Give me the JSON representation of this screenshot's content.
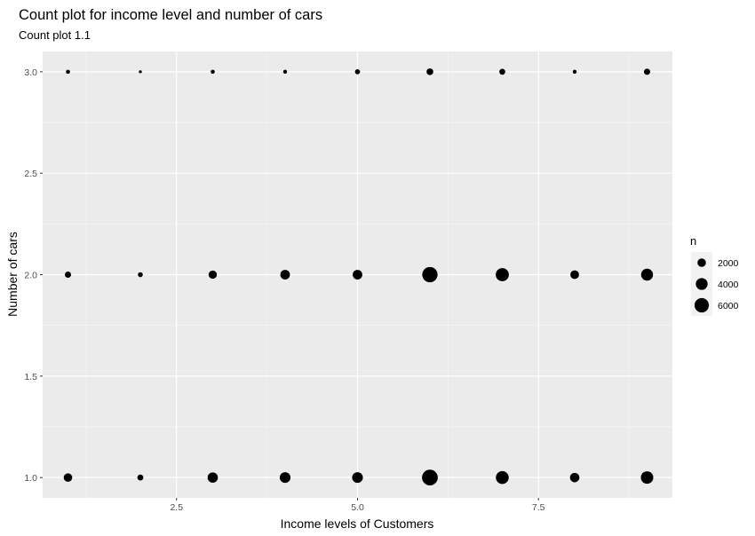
{
  "chart_data": {
    "type": "scatter",
    "title": "Count plot for income level and number of cars",
    "subtitle": "Count plot 1.1",
    "xlabel": "Income levels of Customers",
    "ylabel": "Number of cars",
    "xlim": [
      0.65,
      9.35
    ],
    "ylim": [
      0.9,
      3.1
    ],
    "x_ticks": [
      2.5,
      5.0,
      7.5
    ],
    "x_tick_labels": [
      "2.5",
      "5.0",
      "7.5"
    ],
    "y_ticks": [
      1.0,
      1.5,
      2.0,
      2.5,
      3.0
    ],
    "y_tick_labels": [
      "1.0",
      "1.5",
      "2.0",
      "2.5",
      "3.0"
    ],
    "grid": true,
    "legend": {
      "title": "n",
      "placement": "right",
      "entries": [
        {
          "label": "2000",
          "value": 2000
        },
        {
          "label": "4000",
          "value": 4000
        },
        {
          "label": "6000",
          "value": 6000
        }
      ]
    },
    "size_domain": [
      50,
      7500
    ],
    "points": [
      {
        "x": 1,
        "y": 1,
        "n": 2000
      },
      {
        "x": 2,
        "y": 1,
        "n": 900
      },
      {
        "x": 3,
        "y": 1,
        "n": 3000
      },
      {
        "x": 4,
        "y": 1,
        "n": 3300
      },
      {
        "x": 5,
        "y": 1,
        "n": 3300
      },
      {
        "x": 6,
        "y": 1,
        "n": 7300
      },
      {
        "x": 7,
        "y": 1,
        "n": 4800
      },
      {
        "x": 8,
        "y": 1,
        "n": 2500
      },
      {
        "x": 9,
        "y": 1,
        "n": 4500
      },
      {
        "x": 1,
        "y": 2,
        "n": 1000
      },
      {
        "x": 2,
        "y": 2,
        "n": 550
      },
      {
        "x": 3,
        "y": 2,
        "n": 1900
      },
      {
        "x": 4,
        "y": 2,
        "n": 2600
      },
      {
        "x": 5,
        "y": 2,
        "n": 2600
      },
      {
        "x": 6,
        "y": 2,
        "n": 6900
      },
      {
        "x": 7,
        "y": 2,
        "n": 5000
      },
      {
        "x": 8,
        "y": 2,
        "n": 2100
      },
      {
        "x": 9,
        "y": 2,
        "n": 4100
      },
      {
        "x": 1,
        "y": 3,
        "n": 330
      },
      {
        "x": 2,
        "y": 3,
        "n": 100
      },
      {
        "x": 3,
        "y": 3,
        "n": 330
      },
      {
        "x": 4,
        "y": 3,
        "n": 300
      },
      {
        "x": 5,
        "y": 3,
        "n": 600
      },
      {
        "x": 6,
        "y": 3,
        "n": 1200
      },
      {
        "x": 7,
        "y": 3,
        "n": 900
      },
      {
        "x": 8,
        "y": 3,
        "n": 300
      },
      {
        "x": 9,
        "y": 3,
        "n": 1000
      }
    ]
  }
}
